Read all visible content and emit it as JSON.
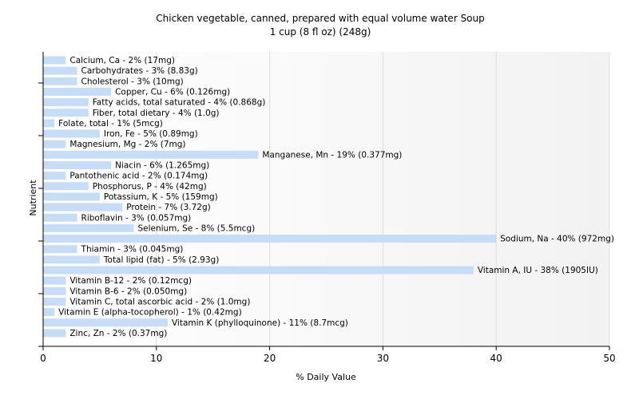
{
  "chart_data": {
    "type": "bar",
    "orientation": "horizontal",
    "title": "Chicken vegetable, canned, prepared with equal volume water Soup",
    "subtitle": "1 cup (8 fl oz) (248g)",
    "xlabel": "% Daily Value",
    "ylabel": "Nutrient",
    "xlim": [
      0,
      50
    ],
    "xticks": [
      0,
      10,
      20,
      30,
      40,
      50
    ],
    "grid": true,
    "colors": {
      "bar": "#c6dcf7",
      "grid": "#dddddd",
      "axis": "#000000"
    },
    "bars": [
      {
        "label": "Calcium, Ca - 2% (17mg)",
        "value": 2
      },
      {
        "label": "Carbohydrates - 3% (8.83g)",
        "value": 3
      },
      {
        "label": "Cholesterol - 3% (10mg)",
        "value": 3
      },
      {
        "label": "Copper, Cu - 6% (0.126mg)",
        "value": 6
      },
      {
        "label": "Fatty acids, total saturated - 4% (0.868g)",
        "value": 4
      },
      {
        "label": "Fiber, total dietary - 4% (1.0g)",
        "value": 4
      },
      {
        "label": "Folate, total - 1% (5mcg)",
        "value": 1
      },
      {
        "label": "Iron, Fe - 5% (0.89mg)",
        "value": 5
      },
      {
        "label": "Magnesium, Mg - 2% (7mg)",
        "value": 2
      },
      {
        "label": "Manganese, Mn - 19% (0.377mg)",
        "value": 19
      },
      {
        "label": "Niacin - 6% (1.265mg)",
        "value": 6
      },
      {
        "label": "Pantothenic acid - 2% (0.174mg)",
        "value": 2
      },
      {
        "label": "Phosphorus, P - 4% (42mg)",
        "value": 4
      },
      {
        "label": "Potassium, K - 5% (159mg)",
        "value": 5
      },
      {
        "label": "Protein - 7% (3.72g)",
        "value": 7
      },
      {
        "label": "Riboflavin - 3% (0.057mg)",
        "value": 3
      },
      {
        "label": "Selenium, Se - 8% (5.5mcg)",
        "value": 8
      },
      {
        "label": "Sodium, Na - 40% (972mg)",
        "value": 40
      },
      {
        "label": "Thiamin - 3% (0.045mg)",
        "value": 3
      },
      {
        "label": "Total lipid (fat) - 5% (2.93g)",
        "value": 5
      },
      {
        "label": "Vitamin A, IU - 38% (1905IU)",
        "value": 38
      },
      {
        "label": "Vitamin B-12 - 2% (0.12mcg)",
        "value": 2
      },
      {
        "label": "Vitamin B-6 - 2% (0.050mg)",
        "value": 2
      },
      {
        "label": "Vitamin C, total ascorbic acid - 2% (1.0mg)",
        "value": 2
      },
      {
        "label": "Vitamin E (alpha-tocopherol) - 1% (0.42mg)",
        "value": 1
      },
      {
        "label": "Vitamin K (phylloquinone) - 11% (8.7mcg)",
        "value": 11
      },
      {
        "label": "Zinc, Zn - 2% (0.37mg)",
        "value": 2
      }
    ]
  }
}
